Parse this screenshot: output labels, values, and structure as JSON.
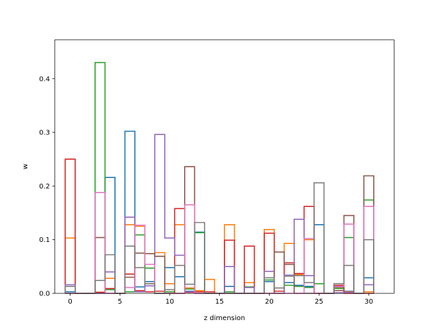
{
  "chart_data": {
    "type": "step-histogram",
    "xlabel": "z dimension",
    "ylabel": "w",
    "xlim": [
      -1.55,
      32.55
    ],
    "ylim": [
      0,
      0.4725
    ],
    "xticks": [
      0,
      5,
      10,
      15,
      20,
      25,
      30
    ],
    "yticks": [
      0.0,
      0.1,
      0.2,
      0.3,
      0.4
    ],
    "xtick_labels": [
      "0",
      "5",
      "10",
      "15",
      "20",
      "25",
      "30"
    ],
    "ytick_labels": [
      "0.0",
      "0.1",
      "0.2",
      "0.3",
      "0.4"
    ],
    "grid": false,
    "legend": "none",
    "bins": [
      0,
      1,
      2,
      3,
      4,
      5,
      6,
      7,
      8,
      9,
      10,
      11,
      12,
      13,
      14,
      15,
      16,
      17,
      18,
      19,
      20,
      21,
      22,
      23,
      24,
      25,
      26,
      27,
      28,
      29,
      30
    ],
    "series": [
      {
        "color": "#1f77b4",
        "values": [
          0.003,
          0,
          0,
          0.001,
          0.216,
          0,
          0.302,
          0.012,
          0.022,
          0,
          0.048,
          0.031,
          0.004,
          0.114,
          0,
          0,
          0.013,
          0,
          0,
          0,
          0.022,
          0,
          0.02,
          0.015,
          0.013,
          0.128,
          0,
          0.012,
          0.004,
          0,
          0.029
        ]
      },
      {
        "color": "#ff7f0e",
        "values": [
          0.103,
          0,
          0,
          0.002,
          0.028,
          0,
          0.128,
          0.125,
          0.018,
          0.076,
          0.018,
          0.128,
          0.01,
          0.005,
          0.026,
          0,
          0.128,
          0,
          0.02,
          0,
          0.119,
          0,
          0.093,
          0.035,
          0.1,
          0,
          0,
          0.01,
          0.003,
          0,
          0.003
        ]
      },
      {
        "color": "#2ca02c",
        "values": [
          0,
          0,
          0,
          0.43,
          0.007,
          0,
          0.003,
          0.109,
          0.047,
          0,
          0.003,
          0,
          0.008,
          0.113,
          0,
          0,
          0.003,
          0,
          0.012,
          0,
          0.025,
          0,
          0.015,
          0.013,
          0.011,
          0.018,
          0,
          0.009,
          0.104,
          0,
          0.174
        ]
      },
      {
        "color": "#d62728",
        "values": [
          0.25,
          0,
          0,
          0.002,
          0.009,
          0,
          0.036,
          0.005,
          0.003,
          0.004,
          0,
          0.158,
          0.002,
          0.003,
          0.003,
          0,
          0.099,
          0,
          0.088,
          0,
          0.112,
          0.004,
          0.057,
          0.037,
          0.162,
          0,
          0,
          0.015,
          0,
          0,
          0
        ]
      },
      {
        "color": "#9467bd",
        "values": [
          0.016,
          0,
          0,
          0,
          0.04,
          0,
          0.142,
          0.003,
          0.014,
          0.296,
          0.103,
          0.071,
          0.003,
          0,
          0,
          0,
          0.05,
          0,
          0.011,
          0,
          0.041,
          0,
          0.034,
          0.138,
          0.033,
          0,
          0,
          0.001,
          0.002,
          0,
          0.016
        ]
      },
      {
        "color": "#8c564b",
        "values": [
          0,
          0,
          0,
          0.104,
          0,
          0,
          0.03,
          0.075,
          0.074,
          0.069,
          0,
          0,
          0.236,
          0,
          0,
          0,
          0,
          0,
          0,
          0,
          0,
          0.077,
          0.054,
          0,
          0,
          0,
          0,
          0.005,
          0.145,
          0,
          0.219
        ]
      },
      {
        "color": "#e377c2",
        "values": [
          0,
          0,
          0,
          0.188,
          0,
          0,
          0.011,
          0.127,
          0.054,
          0,
          0,
          0,
          0.165,
          0,
          0,
          0,
          0,
          0,
          0,
          0,
          0,
          0,
          0,
          0,
          0.102,
          0,
          0,
          0.013,
          0.129,
          0,
          0.162
        ]
      },
      {
        "color": "#7f7f7f",
        "values": [
          0.013,
          0,
          0,
          0.024,
          0.072,
          0,
          0.088,
          0.048,
          0.018,
          0,
          0.007,
          0.052,
          0.017,
          0.132,
          0,
          0,
          0,
          0,
          0,
          0,
          0.029,
          0.01,
          0.032,
          0.033,
          0.02,
          0.206,
          0,
          0.018,
          0.052,
          0,
          0.1
        ]
      }
    ]
  }
}
